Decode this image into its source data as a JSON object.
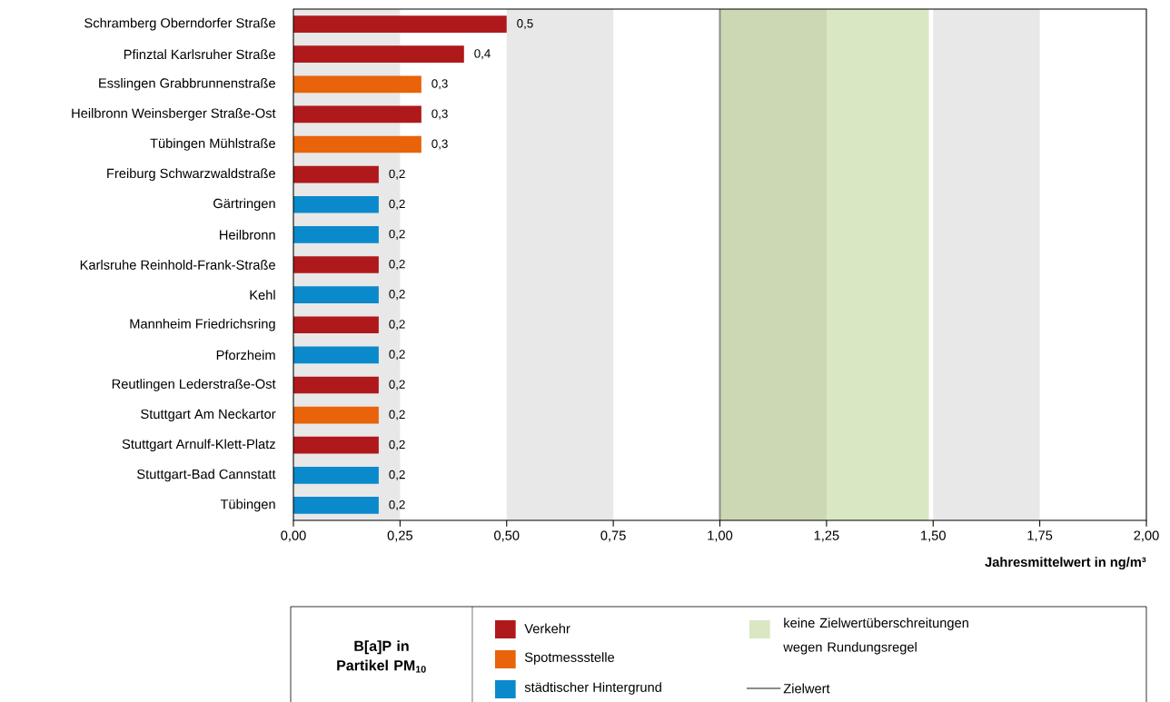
{
  "chart_data": {
    "type": "bar",
    "orientation": "horizontal",
    "xlabel": "Jahresmittelwert in ng/m³",
    "legend_title": "B[a]P in Partikel PM$_{10}$",
    "categories": [
      "Schramberg Oberndorfer Straße",
      "Pfinztal Karlsruher Straße",
      "Esslingen Grabbrunnenstraße",
      "Heilbronn Weinsberger Straße-Ost",
      "Tübingen Mühlstraße",
      "Freiburg Schwarzwaldstraße",
      "Gärtringen",
      "Heilbronn",
      "Karlsruhe Reinhold-Frank-Straße",
      "Kehl",
      "Mannheim Friedrichsring",
      "Pforzheim",
      "Reutlingen Lederstraße-Ost",
      "Stuttgart Am Neckartor",
      "Stuttgart Arnulf-Klett-Platz",
      "Stuttgart-Bad Cannstatt",
      "Tübingen"
    ],
    "series": [
      {
        "name": "Verkehr",
        "color": "#b0191b",
        "values": [
          0.5,
          0.4,
          null,
          0.3,
          null,
          0.2,
          null,
          null,
          0.2,
          null,
          0.2,
          null,
          0.2,
          null,
          0.2,
          null,
          null
        ],
        "value_labels": [
          "0,5",
          "0,4",
          null,
          "0,3",
          null,
          "0,2",
          null,
          null,
          "0,2",
          null,
          "0,2",
          null,
          "0,2",
          null,
          "0,2",
          null,
          null
        ]
      },
      {
        "name": "Spotmessstelle",
        "color": "#e8630a",
        "values": [
          null,
          null,
          0.3,
          null,
          0.3,
          null,
          null,
          null,
          null,
          null,
          null,
          null,
          null,
          0.2,
          null,
          null,
          null
        ],
        "value_labels": [
          null,
          null,
          "0,3",
          null,
          "0,3",
          null,
          null,
          null,
          null,
          null,
          null,
          null,
          null,
          "0,2",
          null,
          null,
          null
        ]
      },
      {
        "name": "städtischer Hintergrund",
        "color": "#0a8acb",
        "values": [
          null,
          null,
          null,
          null,
          null,
          null,
          0.2,
          0.2,
          null,
          0.2,
          null,
          0.2,
          null,
          null,
          null,
          0.2,
          0.2
        ],
        "value_labels": [
          null,
          null,
          null,
          null,
          null,
          null,
          "0,2",
          "0,2",
          null,
          "0,2",
          null,
          "0,2",
          null,
          null,
          null,
          "0,2",
          "0,2"
        ]
      }
    ],
    "xlim": [
      0,
      2
    ],
    "xticks": [
      {
        "value": 0,
        "label": "0,00"
      },
      {
        "value": 0.25,
        "label": "0,25"
      },
      {
        "value": 0.5,
        "label": "0,50"
      },
      {
        "value": 0.75,
        "label": "0,75"
      },
      {
        "value": 1,
        "label": "1,00"
      },
      {
        "value": 1.25,
        "label": "1,25"
      },
      {
        "value": 1.5,
        "label": "1,50"
      },
      {
        "value": 1.75,
        "label": "1,75"
      },
      {
        "value": 2,
        "label": "2,00"
      }
    ],
    "bands": [
      {
        "axis": "x",
        "from": 1,
        "to": 1.49,
        "color": "#d9e7c3",
        "label": "keine Zielwertüberschreitungen wegen Rundungsregel"
      },
      {
        "axis": "x",
        "from": 0,
        "to": 0.25,
        "color": "#e8e8e8"
      },
      {
        "axis": "x",
        "from": 0.5,
        "to": 0.75,
        "color": "#e8e8e8"
      },
      {
        "axis": "x",
        "from": 1,
        "to": 1.25,
        "color": "#cbd8b3"
      },
      {
        "axis": "x",
        "from": 1.5,
        "to": 1.75,
        "color": "#e8e8e8"
      }
    ],
    "ref_lines": [
      {
        "axis": "x",
        "value": 1,
        "label": "Zielwert",
        "color": "#8c8c8c"
      }
    ],
    "legend": "bottom"
  }
}
